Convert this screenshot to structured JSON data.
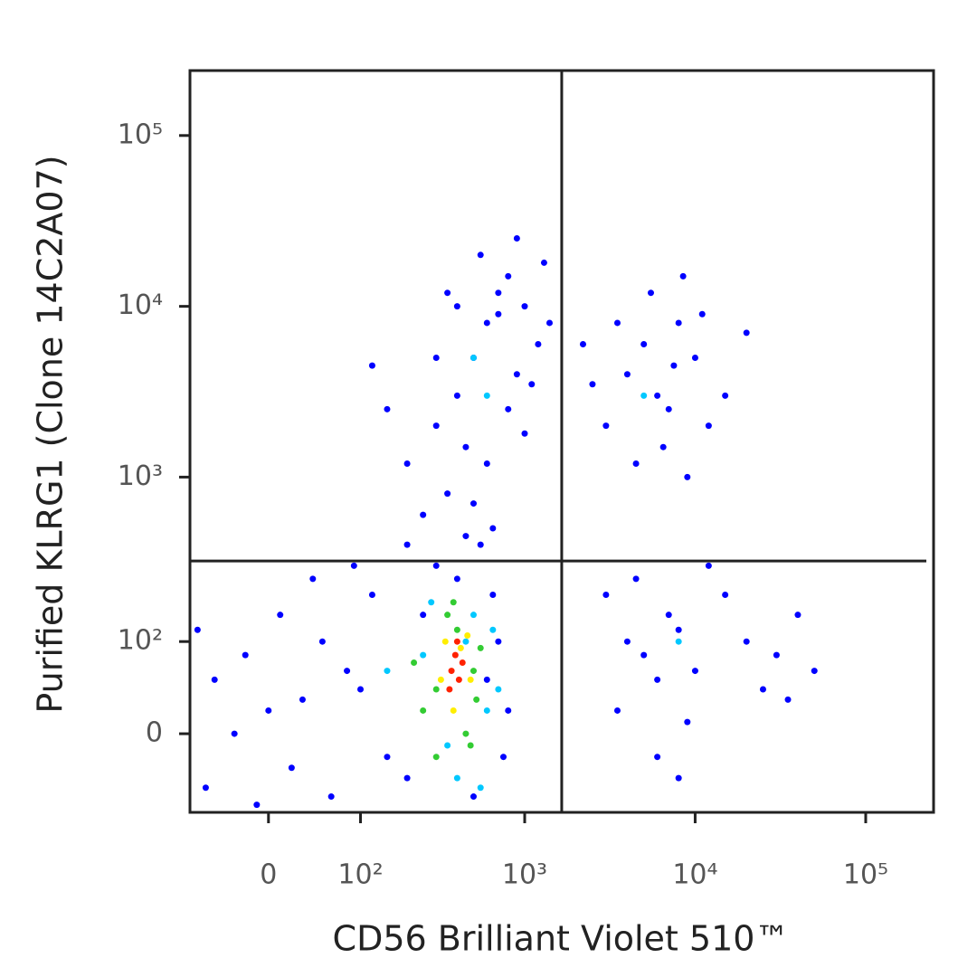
{
  "chart_data": {
    "type": "scatter",
    "x_label": "CD56 Brilliant Violet 510™",
    "y_label": "Purified KLRG1 (Clone 14C2A07)",
    "scale": "biexponential",
    "xlim": [
      -80,
      250000
    ],
    "ylim": [
      -80,
      240000
    ],
    "xticks": [
      0,
      {
        "value": 100,
        "label": "10²"
      },
      {
        "value": 1000,
        "label": "10³"
      },
      {
        "value": 10000,
        "label": "10⁴"
      },
      {
        "value": 100000,
        "label": "10⁵"
      }
    ],
    "yticks": [
      0,
      {
        "value": 100,
        "label": "10²"
      },
      {
        "value": 1000,
        "label": "10³"
      },
      {
        "value": 10000,
        "label": "10⁴"
      },
      {
        "value": 100000,
        "label": "10⁵"
      }
    ],
    "quadrant": {
      "x": 1650,
      "y": 320
    },
    "series": [
      {
        "color": "#0000ff",
        "x": [
          300,
          400,
          500,
          600,
          700,
          800,
          1000,
          1200,
          900,
          450,
          350,
          500,
          600,
          250,
          800,
          1100,
          1300,
          550,
          700,
          400,
          300,
          200,
          150,
          900,
          1000,
          650,
          450,
          1400,
          120,
          350,
          3000,
          4000,
          5000,
          6000,
          7000,
          8000,
          10000,
          12000,
          4500,
          6500,
          9000,
          3500,
          5500,
          2500,
          7500,
          15000,
          11000,
          8500,
          2200,
          20000,
          3000,
          4000,
          5000,
          6000,
          7000,
          8000,
          10000,
          15000,
          20000,
          30000,
          40000,
          50000,
          25000,
          6000,
          9000,
          4500,
          12000,
          35000,
          8000,
          3500,
          -50,
          -20,
          0,
          20,
          50,
          80,
          -60,
          10,
          60,
          -30,
          100,
          120,
          40,
          -10,
          150,
          90,
          200,
          250,
          30,
          -70,
          600,
          700,
          800,
          200,
          500,
          650,
          400,
          300,
          750,
          550
        ],
        "values": [
          2000,
          3000,
          5000,
          8000,
          12000,
          15000,
          10000,
          6000,
          4000,
          1500,
          800,
          700,
          1200,
          600,
          2500,
          3500,
          18000,
          20000,
          9000,
          10000,
          5000,
          1200,
          2500,
          25000,
          1800,
          500,
          450,
          8000,
          4500,
          12000,
          2000,
          4000,
          6000,
          3000,
          2500,
          8000,
          5000,
          2000,
          1200,
          1500,
          1000,
          8000,
          12000,
          3500,
          4500,
          3000,
          9000,
          15000,
          6000,
          7000,
          200,
          100,
          80,
          50,
          150,
          120,
          60,
          200,
          100,
          80,
          150,
          60,
          40,
          -20,
          10,
          250,
          300,
          30,
          -40,
          20,
          50,
          80,
          20,
          -30,
          100,
          60,
          -50,
          150,
          -60,
          0,
          40,
          200,
          250,
          -70,
          -20,
          300,
          400,
          150,
          30,
          120,
          50,
          100,
          20,
          -40,
          -60,
          200,
          250,
          300,
          -20,
          400
        ]
      },
      {
        "color": "#00c8ff",
        "x": [
          450,
          500,
          350,
          250,
          600,
          650,
          280,
          500,
          600,
          5000,
          8000,
          150,
          550,
          700,
          400
        ],
        "values": [
          100,
          150,
          -10,
          80,
          20,
          120,
          180,
          5000,
          3000,
          3000,
          100,
          60,
          -50,
          40,
          -40
        ]
      },
      {
        "color": "#33cc33",
        "x": [
          300,
          400,
          500,
          250,
          350,
          450,
          550,
          300,
          220,
          520,
          380,
          480
        ],
        "values": [
          40,
          120,
          60,
          20,
          150,
          0,
          90,
          -20,
          70,
          30,
          180,
          -10
        ]
      },
      {
        "color": "#ffee00",
        "x": [
          320,
          420,
          480,
          340,
          380,
          460
        ],
        "values": [
          50,
          90,
          50,
          100,
          20,
          110
        ]
      },
      {
        "color": "#ff2200",
        "x": [
          370,
          410,
          390,
          430,
          360,
          400
        ],
        "values": [
          60,
          50,
          80,
          70,
          40,
          100
        ]
      }
    ]
  }
}
